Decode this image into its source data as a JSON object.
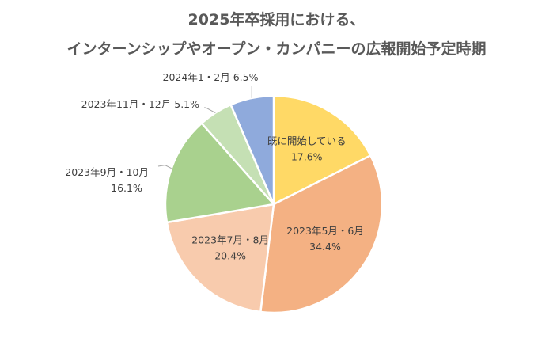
{
  "title": {
    "line1": "2025年卒採用における、",
    "line2": "インターンシップやオープン・カンパニーの広報開始予定時期"
  },
  "chart_data": {
    "type": "pie",
    "title": "2025年卒採用における、インターンシップやオープン・カンパニーの広報開始予定時期",
    "start_angle_deg": 0,
    "direction": "clockwise",
    "slices": [
      {
        "label": "既に開始している",
        "value": 17.6,
        "value_label": "17.6%",
        "color": "#ffd966"
      },
      {
        "label": "2023年5月・6月",
        "value": 34.4,
        "value_label": "34.4%",
        "color": "#f4b183"
      },
      {
        "label": "2023年7月・8月",
        "value": 20.4,
        "value_label": "20.4%",
        "color": "#f8cbad"
      },
      {
        "label": "2023年9月・10月",
        "value": 16.1,
        "value_label": "16.1%",
        "color": "#a9d18e"
      },
      {
        "label": "2023年11月・12月",
        "value": 5.1,
        "value_label": "5.1%",
        "color": "#c5e0b4"
      },
      {
        "label": "2024年1・2月",
        "value": 6.5,
        "value_label": "6.5%",
        "color": "#8faadc"
      }
    ]
  }
}
